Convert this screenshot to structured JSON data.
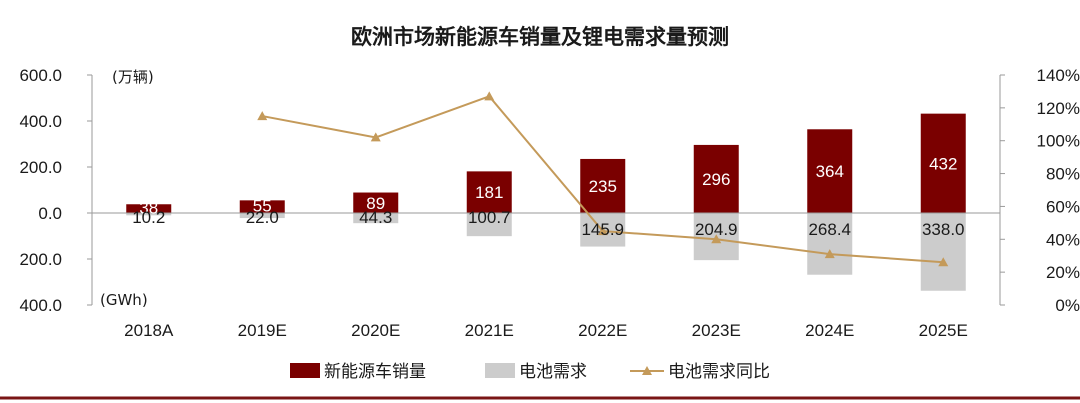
{
  "chart_data": {
    "type": "bar",
    "title": "欧洲市场新能源车销量及锂电需求量预测",
    "categories": [
      "2018A",
      "2019E",
      "2020E",
      "2021E",
      "2022E",
      "2023E",
      "2024E",
      "2025E"
    ],
    "left_axis": {
      "ticks": [
        "600.0",
        "400.0",
        "200.0",
        "0.0",
        "200.0",
        "400.0"
      ],
      "tick_values": [
        600,
        400,
        200,
        0,
        -200,
        -400
      ],
      "ylim": [
        -400,
        600
      ],
      "upper_unit": "(万辆)",
      "lower_unit": "(GWh)"
    },
    "right_axis": {
      "ticks": [
        "140%",
        "120%",
        "100%",
        "80%",
        "60%",
        "40%",
        "20%",
        "0%"
      ],
      "tick_values": [
        140,
        120,
        100,
        80,
        60,
        40,
        20,
        0
      ],
      "ylim": [
        0,
        140
      ]
    },
    "series": [
      {
        "name": "新能源车销量",
        "type": "bar",
        "direction": "up",
        "color": "#7a0000",
        "values": [
          38,
          55,
          89,
          181,
          235,
          296,
          364,
          432
        ],
        "labels": [
          "38",
          "55",
          "89",
          "181",
          "235",
          "296",
          "364",
          "432"
        ]
      },
      {
        "name": "电池需求",
        "type": "bar",
        "direction": "down",
        "color": "#cccccc",
        "values": [
          10.2,
          22.0,
          44.3,
          100.7,
          145.9,
          204.9,
          268.4,
          338.0
        ],
        "labels": [
          "10.2",
          "22.0",
          "44.3",
          "100.7",
          "145.9",
          "204.9",
          "268.4",
          "338.0"
        ]
      },
      {
        "name": "电池需求同比",
        "type": "line",
        "axis": "right",
        "color": "#c49a5a",
        "marker": "triangle",
        "values": [
          null,
          115,
          102,
          127,
          45,
          40,
          31,
          26
        ]
      }
    ],
    "legend_position": "bottom",
    "grid": false
  }
}
